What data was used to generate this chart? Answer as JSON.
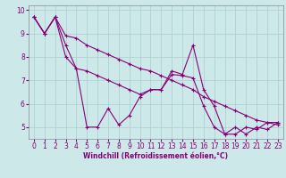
{
  "xlabel": "Windchill (Refroidissement éolien,°C)",
  "background_color": "#cce8e8",
  "grid_color": "#aacece",
  "line_color": "#880077",
  "xlim": [
    -0.5,
    23.5
  ],
  "ylim": [
    4.5,
    10.2
  ],
  "yticks": [
    5,
    6,
    7,
    8,
    9,
    10
  ],
  "xticks": [
    0,
    1,
    2,
    3,
    4,
    5,
    6,
    7,
    8,
    9,
    10,
    11,
    12,
    13,
    14,
    15,
    16,
    17,
    18,
    19,
    20,
    21,
    22,
    23
  ],
  "series1_x": [
    0,
    1,
    2,
    3,
    4,
    5,
    6,
    7,
    8,
    9,
    10,
    11,
    12,
    13,
    14,
    15,
    16,
    17,
    18,
    19,
    20,
    21,
    22,
    23
  ],
  "series1_y": [
    9.7,
    9.0,
    9.7,
    8.9,
    8.8,
    8.5,
    8.3,
    8.1,
    7.9,
    7.7,
    7.5,
    7.4,
    7.2,
    7.0,
    6.8,
    6.6,
    6.3,
    6.1,
    5.9,
    5.7,
    5.5,
    5.3,
    5.2,
    5.1
  ],
  "series2_x": [
    0,
    1,
    2,
    3,
    4,
    5,
    6,
    7,
    8,
    9,
    10,
    11,
    12,
    13,
    14,
    15,
    16,
    17,
    18,
    19,
    20,
    21,
    22,
    23
  ],
  "series2_y": [
    9.7,
    9.0,
    9.7,
    8.0,
    7.5,
    5.0,
    5.0,
    5.8,
    5.1,
    5.5,
    6.3,
    6.6,
    6.6,
    7.4,
    7.25,
    8.5,
    6.6,
    5.9,
    4.7,
    5.0,
    4.7,
    5.0,
    4.9,
    5.2
  ],
  "series3_x": [
    0,
    1,
    2,
    3,
    4,
    5,
    6,
    7,
    8,
    9,
    10,
    11,
    12,
    13,
    14,
    15,
    16,
    17,
    18,
    19,
    20,
    21,
    22,
    23
  ],
  "series3_y": [
    9.7,
    9.0,
    9.7,
    8.5,
    7.5,
    7.4,
    7.2,
    7.0,
    6.8,
    6.6,
    6.4,
    6.6,
    6.6,
    7.25,
    7.2,
    7.1,
    5.9,
    5.0,
    4.7,
    4.7,
    5.0,
    4.9,
    5.2,
    5.2
  ],
  "tick_fontsize": 5.5,
  "xlabel_fontsize": 5.5,
  "line_width": 0.8,
  "marker_size": 2.5
}
